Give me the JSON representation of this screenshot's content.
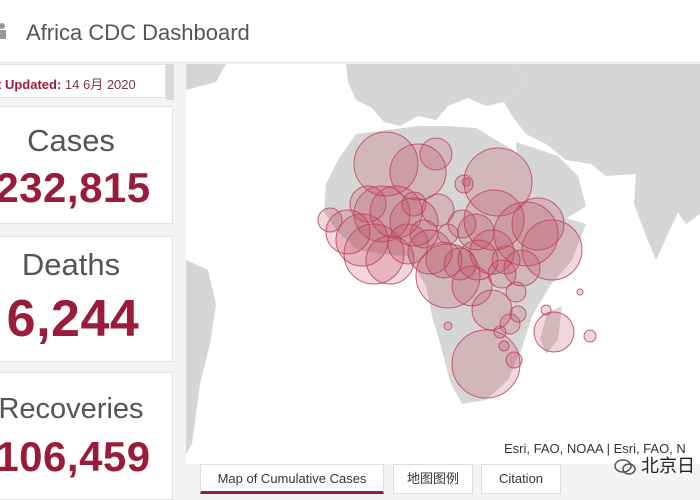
{
  "header": {
    "title": "Africa CDC Dashboard",
    "icon": "logo-icon"
  },
  "last_updated": {
    "label": "t Updated:",
    "date": "14 6月 2020"
  },
  "stats": {
    "cases": {
      "label": "Cases",
      "value": "232,815"
    },
    "deaths": {
      "label": "Deaths",
      "value": "6,244"
    },
    "recoveries": {
      "label": "Recoveries",
      "value": "106,459"
    }
  },
  "map": {
    "attribution": "Esri, FAO, NOAA | Esri, FAO, N",
    "bubble_color": "#c0445e",
    "land_color": "#d6d6d6"
  },
  "tabs": [
    {
      "label": "Map of Cumulative Cases",
      "active": true
    },
    {
      "label": "地图图例",
      "active": false
    },
    {
      "label": "Citation",
      "active": false
    }
  ],
  "watermark": {
    "text": "北京日"
  }
}
